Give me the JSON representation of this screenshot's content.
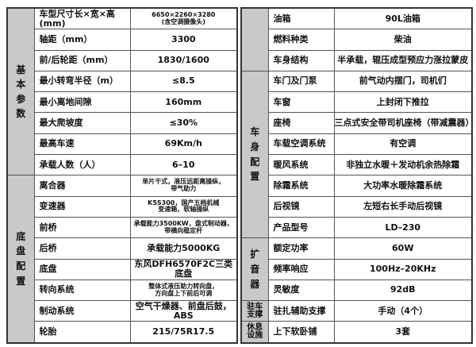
{
  "left_table": {
    "groups": [
      {
        "category": "基本参数",
        "rows": [
          {
            "label": "车型尺寸长×宽×高(mm)",
            "value": "6650×2260×3280\n(含空调摄像头)"
          },
          {
            "label": "轴距（mm）",
            "value": "3300"
          },
          {
            "label": "前/后轮距（mm）",
            "value": "1830/1600"
          },
          {
            "label": "最小转弯半径（m）",
            "value": "≤8.5"
          },
          {
            "label": "最小离地间隙",
            "value": "160mm"
          },
          {
            "label": "最大爬坡度",
            "value": "≤30%"
          },
          {
            "label": "最高车速",
            "value": "69Km/h"
          },
          {
            "label": "承载人数（人）",
            "value": "6–10"
          }
        ]
      },
      {
        "category": "底盘配置",
        "rows": [
          {
            "label": "离合器",
            "value": "单片干式，液压远距离操纵，\n带气助力"
          },
          {
            "label": "变速器",
            "value": "K5S300，国产五档机械\n变速箱，软轴操纵"
          },
          {
            "label": "前桥",
            "value": "承载能力3500KW，盘式制动器，\n带横向稳定杆"
          },
          {
            "label": "后桥",
            "value": "承载能力5000KG"
          },
          {
            "label": "底盘",
            "value": "东风DFH6570F2C三类底盘"
          },
          {
            "label": "转向系统",
            "value": "整体式液压助力转向盘，\n方向盘上下前后可调"
          },
          {
            "label": "制动系统",
            "value": "空气干燥器、前盘后鼓，ABS"
          },
          {
            "label": "轮胎",
            "value": "215/75R17.5"
          }
        ]
      }
    ]
  },
  "right_table": {
    "groups": [
      {
        "category": "",
        "rows": [
          {
            "label": "油箱",
            "value": "90L油箱"
          },
          {
            "label": "燃料种类",
            "value": "柴油"
          },
          {
            "label": "车身结构",
            "value": "半承载，辊压成型预应力涨拉蒙皮"
          }
        ]
      },
      {
        "category": "车身配置",
        "rows": [
          {
            "label": "车门及门泵",
            "value": "前气动内摆门，司机们"
          },
          {
            "label": "车窗",
            "value": "上封闭下推拉"
          },
          {
            "label": "座椅",
            "value": "三点式安全带司机座椅（带减震器）"
          },
          {
            "label": "车载空调系统",
            "value": "有空调"
          },
          {
            "label": "暖风系统",
            "value": "非独立水暖＋发动机余热除霜"
          },
          {
            "label": "除霜系统",
            "value": "大功率水暖除霜系统"
          },
          {
            "label": "后视镜",
            "value": "左短右长手动后视镜"
          },
          {
            "label": "产品型号",
            "value": "LD–230"
          }
        ]
      },
      {
        "category": "扩音器",
        "rows": [
          {
            "label": "额定功率",
            "value": "60W"
          },
          {
            "label": "频率响应",
            "value": "100Hz–20KHz"
          },
          {
            "label": "灵敏度",
            "value": "92dB"
          }
        ]
      },
      {
        "category": "驻车支撑",
        "small": true,
        "rows": [
          {
            "label": "驻扎辅助支撑",
            "value": "手动（4个）"
          }
        ]
      },
      {
        "category": "休息设施",
        "small": true,
        "rows": [
          {
            "label": "上下软卧铺",
            "value": "3套"
          }
        ]
      }
    ]
  }
}
